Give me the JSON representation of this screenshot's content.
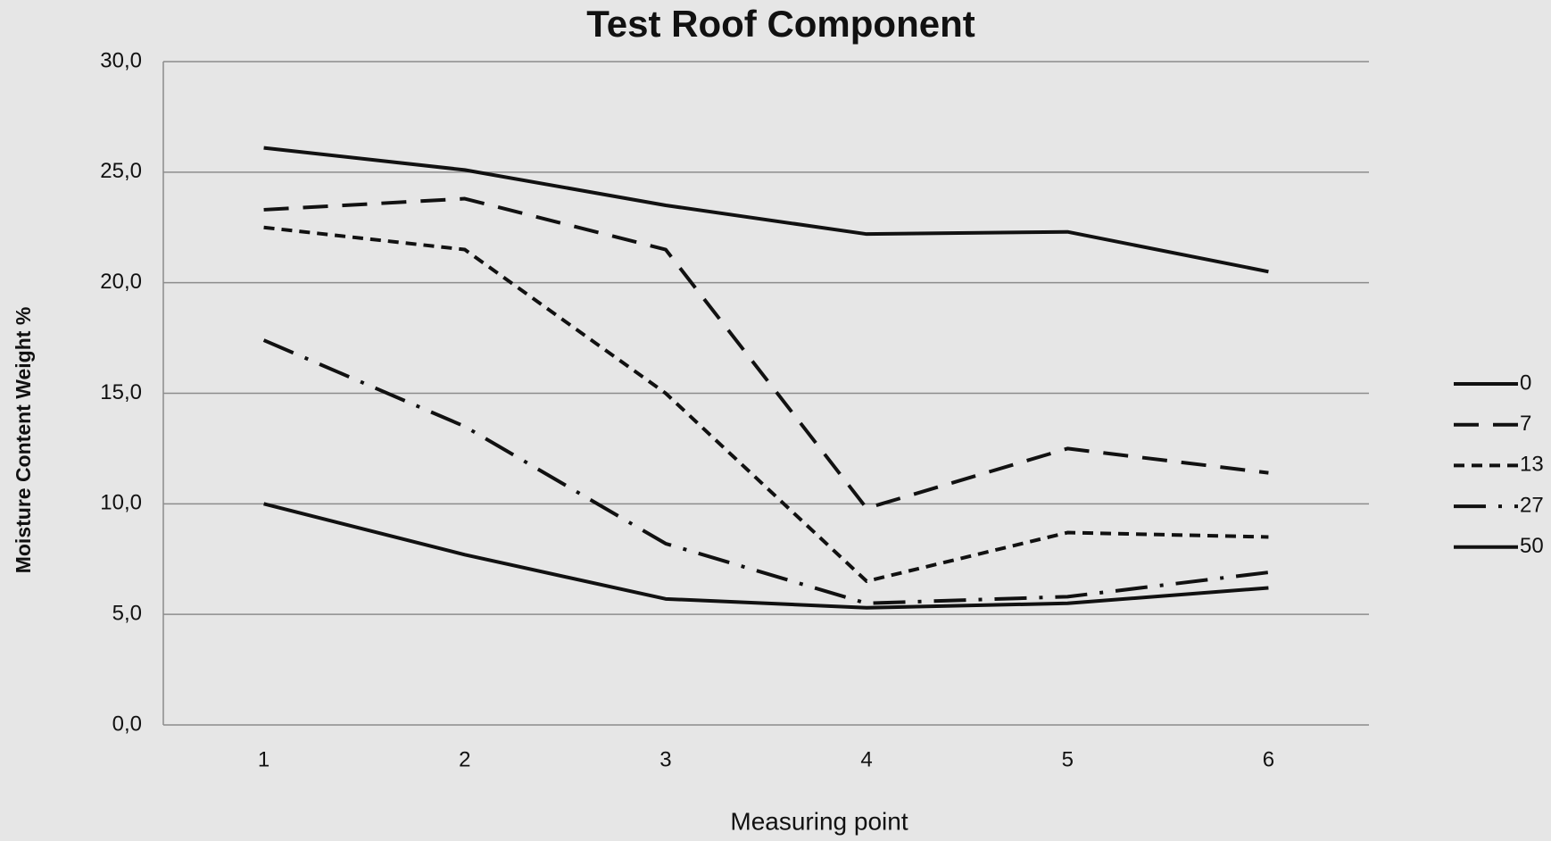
{
  "chart_data": {
    "type": "line",
    "title": "Test Roof Component",
    "x_label": "Measuring point",
    "y_label": "Moisture Content Weight %",
    "categories": [
      "1",
      "2",
      "3",
      "4",
      "5",
      "6"
    ],
    "series": [
      {
        "name": "0",
        "color": "#111111",
        "dash": "none",
        "values": [
          26.1,
          25.1,
          23.5,
          22.2,
          22.3,
          20.5
        ]
      },
      {
        "name": "7",
        "color": "#111111",
        "dash": "28 16",
        "values": [
          23.3,
          23.8,
          21.5,
          9.8,
          12.5,
          11.4
        ]
      },
      {
        "name": "13",
        "color": "#111111",
        "dash": "12 8",
        "values": [
          22.5,
          21.5,
          15.0,
          6.5,
          8.7,
          8.5
        ]
      },
      {
        "name": "27",
        "color": "#111111",
        "dash": "36 14 4 14",
        "values": [
          17.4,
          13.5,
          8.2,
          5.5,
          5.8,
          6.9
        ]
      },
      {
        "name": "50",
        "color": "#111111",
        "dash": "none",
        "values": [
          10.0,
          7.7,
          5.7,
          5.3,
          5.5,
          6.2
        ]
      }
    ],
    "ylim": [
      0,
      30
    ],
    "yticks": [
      {
        "value": 0,
        "label": "0,0"
      },
      {
        "value": 5,
        "label": "5,0"
      },
      {
        "value": 10,
        "label": "10,0"
      },
      {
        "value": 15,
        "label": "15,0"
      },
      {
        "value": 20,
        "label": "20,0"
      },
      {
        "value": 25,
        "label": "25,0"
      },
      {
        "value": 30,
        "label": "30,0"
      }
    ],
    "grid": true,
    "legend": "right"
  }
}
